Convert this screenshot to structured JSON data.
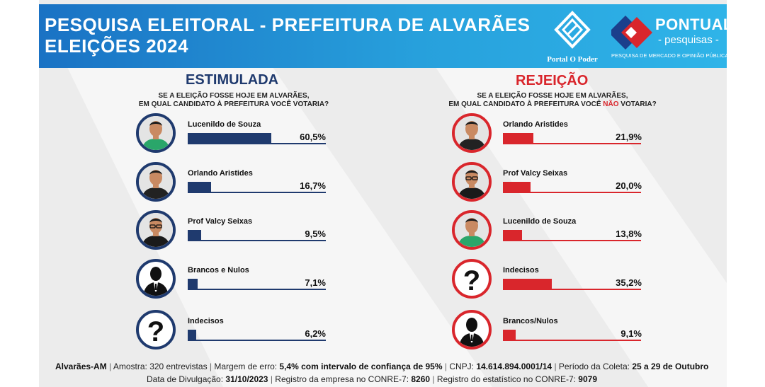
{
  "header": {
    "title_line1": "PESQUISA ELEITORAL - PREFEITURA DE ALVARÃES",
    "title_line2": "ELEIÇÕES 2024",
    "logo1_caption": "Portal O Poder",
    "logo2_brand": "PONTUAL",
    "logo2_sub": "- pesquisas -",
    "logo2_tag": "PESQUISA DE MERCADO E OPINIÃO PÚBLICA"
  },
  "colors": {
    "navy": "#1f3a6e",
    "red": "#d9262c",
    "header_start": "#1a72c4",
    "header_end": "#2fb4e8"
  },
  "chart_data": [
    {
      "type": "bar",
      "title": "ESTIMULADA",
      "question_line1": "SE A ELEIÇÃO FOSSE HOJE EM ALVARÃES,",
      "question_line2_pre": "EM QUAL CANDIDATO À PREFEITURA VOCÊ VOTARIA?",
      "question_line2_neg": "",
      "question_line2_post": "",
      "categories": [
        "Lucenildo de Souza",
        "Orlando Aristides",
        "Prof Valcy Seixas",
        "Brancos e Nulos",
        "Indecisos"
      ],
      "values": [
        60.5,
        16.7,
        9.5,
        7.1,
        6.2
      ],
      "value_labels": [
        "60,5%",
        "16,7%",
        "9,5%",
        "7,1%",
        "6,2%"
      ],
      "avatars": [
        "person-green-shirt",
        "person-black-shirt",
        "person-glasses",
        "silhouette-icon",
        "question-mark-icon"
      ],
      "color": "#1f3a6e"
    },
    {
      "type": "bar",
      "title": "REJEIÇÃO",
      "question_line1": "SE A ELEIÇÃO FOSSE HOJE EM ALVARÃES,",
      "question_line2_pre": "EM QUAL CANDIDATO À PREFEITURA VOCÊ ",
      "question_line2_neg": "NÃO",
      "question_line2_post": " VOTARIA?",
      "categories": [
        "Orlando Aristides",
        "Prof Valcy Seixas",
        "Lucenildo de Souza",
        "Indecisos",
        "Brancos/Nulos"
      ],
      "values": [
        21.9,
        20.0,
        13.8,
        35.2,
        9.1
      ],
      "value_labels": [
        "21,9%",
        "20,0%",
        "13,8%",
        "35,2%",
        "9,1%"
      ],
      "avatars": [
        "person-black-shirt",
        "person-glasses",
        "person-green-shirt",
        "question-mark-icon",
        "silhouette-icon"
      ],
      "color": "#d9262c"
    }
  ],
  "footer": {
    "location": "Alvarães-AM",
    "sample_label": "Amostra:",
    "sample_value": "320 entrevistas",
    "margin_label": "Margem de erro:",
    "margin_value": "5,4% com intervalo de confiança de 95%",
    "cnpj_label": "CNPJ:",
    "cnpj_value": "14.614.894.0001/14",
    "period_label": "Período da Coleta:",
    "period_value": "25 a 29 de Outubro",
    "release_label": "Data de Divulgação:",
    "release_value": "31/10/2023",
    "conre_company_label": "Registro da empresa no CONRE-7:",
    "conre_company_value": "8260",
    "conre_stat_label": "Registro do estatístico no CONRE-7:",
    "conre_stat_value": "9079"
  }
}
